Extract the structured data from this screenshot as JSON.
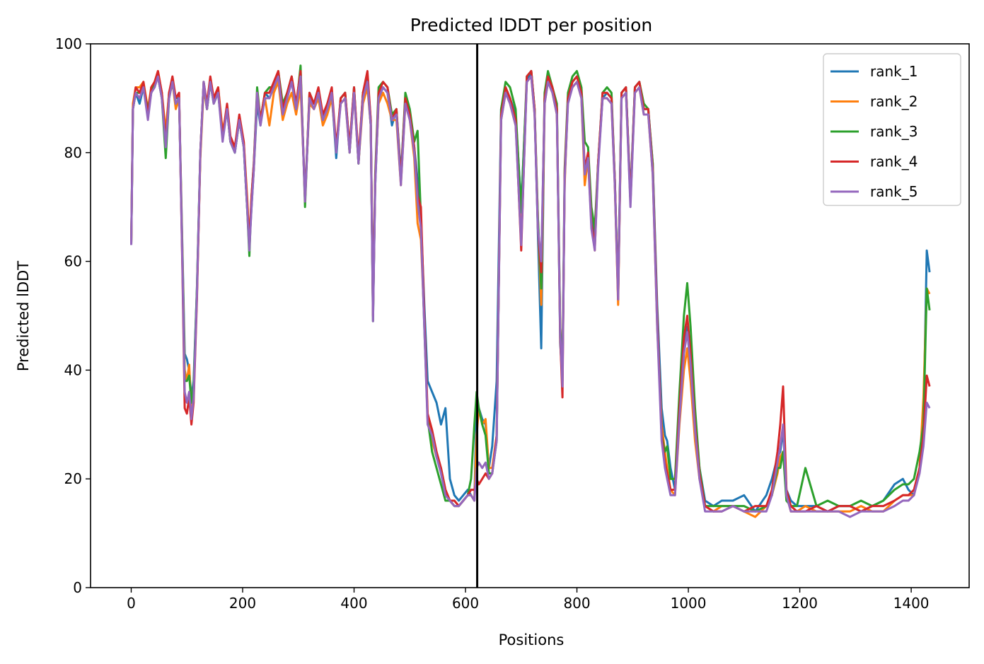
{
  "chart_data": {
    "type": "line",
    "title": "Predicted lDDT per position",
    "xlabel": "Positions",
    "ylabel": "Predicted lDDT",
    "xlim": [
      -73,
      1504
    ],
    "ylim": [
      0,
      100
    ],
    "xticks": [
      0,
      200,
      400,
      600,
      800,
      1000,
      1200,
      1400
    ],
    "yticks": [
      0,
      20,
      40,
      60,
      80,
      100
    ],
    "vline_x": 621,
    "legend_position": "top-right",
    "grid": false,
    "x": [
      0,
      3,
      8,
      15,
      22,
      30,
      36,
      42,
      48,
      55,
      62,
      68,
      74,
      80,
      86,
      92,
      96,
      100,
      104,
      108,
      112,
      118,
      124,
      130,
      136,
      142,
      148,
      156,
      164,
      172,
      178,
      186,
      194,
      202,
      208,
      212,
      216,
      220,
      226,
      232,
      240,
      248,
      256,
      264,
      272,
      280,
      288,
      296,
      304,
      312,
      320,
      328,
      336,
      344,
      352,
      360,
      368,
      376,
      384,
      392,
      400,
      408,
      416,
      424,
      430,
      434,
      438,
      444,
      452,
      460,
      468,
      476,
      484,
      492,
      500,
      508,
      514,
      520,
      526,
      532,
      540,
      548,
      556,
      564,
      572,
      580,
      588,
      596,
      604,
      610,
      616,
      620,
      624,
      630,
      636,
      642,
      648,
      656,
      664,
      672,
      680,
      690,
      700,
      710,
      718,
      724,
      730,
      736,
      742,
      748,
      756,
      764,
      770,
      774,
      778,
      784,
      792,
      800,
      808,
      814,
      820,
      826,
      832,
      838,
      846,
      854,
      862,
      868,
      874,
      880,
      888,
      896,
      904,
      912,
      920,
      928,
      936,
      944,
      952,
      958,
      962,
      968,
      976,
      984,
      992,
      998,
      1004,
      1012,
      1020,
      1030,
      1045,
      1060,
      1080,
      1100,
      1120,
      1140,
      1150,
      1160,
      1165,
      1170,
      1176,
      1184,
      1195,
      1210,
      1230,
      1250,
      1270,
      1290,
      1310,
      1330,
      1350,
      1370,
      1385,
      1395,
      1405,
      1415,
      1422,
      1428,
      1433
    ],
    "series": [
      {
        "name": "rank_1",
        "color": "#1f77b4",
        "values": [
          63,
          88,
          91,
          89,
          92,
          87,
          91,
          93,
          94,
          90,
          83,
          91,
          93,
          90,
          90,
          62,
          43,
          42,
          40,
          35,
          38,
          55,
          80,
          92,
          88,
          93,
          90,
          91,
          83,
          88,
          82,
          80,
          86,
          81,
          70,
          63,
          70,
          77,
          89,
          85,
          91,
          90,
          92,
          94,
          87,
          91,
          93,
          88,
          94,
          72,
          90,
          89,
          91,
          86,
          89,
          91,
          79,
          90,
          91,
          81,
          92,
          78,
          91,
          94,
          86,
          50,
          74,
          90,
          92,
          91,
          85,
          88,
          76,
          90,
          87,
          81,
          75,
          68,
          52,
          38,
          36,
          34,
          30,
          33,
          20,
          17,
          16,
          17,
          18,
          17,
          16,
          34,
          33,
          31,
          30,
          22,
          26,
          38,
          88,
          92,
          90,
          87,
          70,
          93,
          95,
          88,
          65,
          44,
          90,
          94,
          92,
          88,
          45,
          38,
          75,
          90,
          93,
          94,
          91,
          75,
          80,
          68,
          64,
          78,
          90,
          91,
          90,
          75,
          54,
          91,
          92,
          72,
          92,
          93,
          88,
          88,
          78,
          52,
          33,
          28,
          27,
          22,
          18,
          33,
          44,
          48,
          40,
          30,
          22,
          16,
          15,
          16,
          16,
          17,
          14,
          17,
          20,
          24,
          25,
          29,
          18,
          16,
          15,
          15,
          15,
          14,
          15,
          15,
          14,
          15,
          16,
          19,
          20,
          18,
          17,
          22,
          30,
          62,
          58
        ]
      },
      {
        "name": "rank_2",
        "color": "#ff7f0e",
        "values": [
          63,
          89,
          92,
          92,
          93,
          88,
          92,
          93,
          95,
          91,
          84,
          91,
          93,
          88,
          90,
          61,
          40,
          38,
          41,
          33,
          36,
          54,
          79,
          92,
          88,
          93,
          90,
          92,
          84,
          88,
          82,
          81,
          86,
          82,
          72,
          64,
          71,
          77,
          91,
          86,
          90,
          85,
          91,
          93,
          86,
          89,
          91,
          87,
          92,
          72,
          89,
          88,
          90,
          85,
          87,
          90,
          81,
          89,
          90,
          80,
          91,
          78,
          89,
          92,
          85,
          51,
          75,
          89,
          91,
          89,
          86,
          86,
          74,
          89,
          86,
          79,
          67,
          64,
          49,
          31,
          27,
          24,
          22,
          18,
          16,
          15,
          15,
          16,
          17,
          17,
          16,
          28,
          33,
          30,
          31,
          22,
          22,
          28,
          86,
          91,
          89,
          85,
          66,
          93,
          94,
          87,
          68,
          52,
          89,
          93,
          91,
          87,
          48,
          40,
          74,
          90,
          92,
          93,
          90,
          74,
          79,
          67,
          62,
          78,
          90,
          90,
          89,
          74,
          52,
          90,
          91,
          71,
          91,
          92,
          87,
          87,
          76,
          48,
          30,
          25,
          22,
          18,
          17,
          30,
          40,
          44,
          38,
          27,
          20,
          15,
          14,
          15,
          15,
          14,
          13,
          15,
          17,
          21,
          24,
          25,
          17,
          14,
          14,
          15,
          14,
          14,
          14,
          14,
          15,
          14,
          14,
          16,
          17,
          17,
          17,
          22,
          35,
          55,
          54
        ]
      },
      {
        "name": "rank_3",
        "color": "#2ca02c",
        "values": [
          63,
          88,
          91,
          91,
          92,
          88,
          91,
          93,
          94,
          90,
          79,
          90,
          93,
          89,
          90,
          60,
          38,
          38,
          39,
          34,
          37,
          55,
          80,
          93,
          88,
          93,
          89,
          91,
          83,
          88,
          82,
          80,
          86,
          81,
          70,
          61,
          72,
          78,
          92,
          86,
          91,
          92,
          92,
          95,
          89,
          91,
          94,
          88,
          96,
          70,
          91,
          89,
          91,
          86,
          89,
          91,
          80,
          90,
          91,
          80,
          92,
          78,
          91,
          93,
          85,
          49,
          76,
          92,
          93,
          92,
          87,
          88,
          75,
          91,
          88,
          82,
          84,
          68,
          48,
          31,
          25,
          22,
          19,
          16,
          16,
          15,
          15,
          16,
          17,
          20,
          30,
          36,
          33,
          30,
          28,
          21,
          21,
          27,
          88,
          93,
          92,
          88,
          69,
          94,
          95,
          88,
          68,
          55,
          91,
          95,
          92,
          89,
          48,
          39,
          77,
          91,
          94,
          95,
          92,
          82,
          81,
          70,
          66,
          78,
          91,
          92,
          91,
          75,
          54,
          91,
          92,
          71,
          92,
          93,
          89,
          88,
          78,
          50,
          28,
          25,
          26,
          20,
          20,
          36,
          50,
          56,
          48,
          33,
          22,
          15,
          15,
          15,
          15,
          15,
          14,
          15,
          17,
          22,
          22,
          25,
          16,
          15,
          15,
          22,
          15,
          16,
          15,
          15,
          16,
          15,
          16,
          18,
          19,
          19,
          20,
          25,
          30,
          55,
          51
        ]
      },
      {
        "name": "rank_4",
        "color": "#d62728",
        "values": [
          63,
          88,
          92,
          91,
          93,
          87,
          92,
          93,
          95,
          91,
          82,
          91,
          94,
          90,
          91,
          58,
          33,
          32,
          35,
          30,
          34,
          53,
          80,
          93,
          89,
          94,
          90,
          92,
          83,
          89,
          83,
          81,
          87,
          82,
          71,
          63,
          72,
          78,
          91,
          86,
          91,
          91,
          93,
          95,
          88,
          91,
          94,
          89,
          95,
          71,
          91,
          89,
          92,
          87,
          89,
          92,
          81,
          90,
          91,
          81,
          92,
          79,
          91,
          95,
          86,
          50,
          75,
          91,
          93,
          92,
          86,
          88,
          75,
          90,
          87,
          81,
          72,
          70,
          50,
          32,
          29,
          25,
          22,
          18,
          16,
          16,
          15,
          16,
          17,
          18,
          18,
          20,
          19,
          20,
          21,
          20,
          21,
          28,
          87,
          92,
          90,
          86,
          62,
          94,
          95,
          88,
          66,
          58,
          90,
          94,
          92,
          88,
          46,
          35,
          76,
          90,
          93,
          94,
          91,
          77,
          80,
          67,
          63,
          78,
          91,
          91,
          90,
          75,
          53,
          91,
          92,
          71,
          92,
          93,
          88,
          88,
          77,
          50,
          28,
          23,
          21,
          18,
          18,
          33,
          46,
          50,
          43,
          30,
          21,
          15,
          14,
          14,
          15,
          14,
          15,
          15,
          18,
          25,
          30,
          37,
          18,
          15,
          14,
          14,
          15,
          14,
          15,
          15,
          14,
          15,
          15,
          16,
          17,
          17,
          18,
          22,
          28,
          39,
          37
        ]
      },
      {
        "name": "rank_5",
        "color": "#9467bd",
        "values": [
          63,
          88,
          91,
          90,
          92,
          86,
          91,
          92,
          94,
          90,
          81,
          90,
          93,
          89,
          90,
          59,
          36,
          34,
          36,
          31,
          35,
          54,
          80,
          93,
          88,
          93,
          89,
          91,
          82,
          88,
          82,
          80,
          86,
          81,
          70,
          62,
          70,
          77,
          91,
          85,
          90,
          90,
          92,
          94,
          87,
          90,
          93,
          88,
          94,
          71,
          90,
          88,
          91,
          86,
          88,
          91,
          80,
          89,
          90,
          80,
          91,
          78,
          90,
          93,
          85,
          49,
          74,
          90,
          92,
          91,
          86,
          87,
          74,
          89,
          86,
          80,
          71,
          66,
          48,
          30,
          28,
          24,
          21,
          17,
          16,
          15,
          15,
          16,
          17,
          17,
          16,
          22,
          23,
          22,
          23,
          20,
          21,
          27,
          86,
          91,
          89,
          85,
          63,
          93,
          94,
          87,
          66,
          60,
          89,
          93,
          91,
          87,
          47,
          37,
          75,
          89,
          92,
          93,
          90,
          76,
          79,
          66,
          62,
          77,
          90,
          90,
          89,
          74,
          53,
          90,
          91,
          70,
          91,
          92,
          87,
          87,
          76,
          48,
          27,
          22,
          20,
          17,
          17,
          31,
          43,
          47,
          41,
          29,
          20,
          14,
          14,
          14,
          15,
          14,
          14,
          14,
          17,
          23,
          26,
          30,
          17,
          14,
          14,
          14,
          14,
          14,
          14,
          13,
          14,
          14,
          14,
          15,
          16,
          16,
          17,
          21,
          26,
          34,
          33
        ]
      }
    ]
  }
}
